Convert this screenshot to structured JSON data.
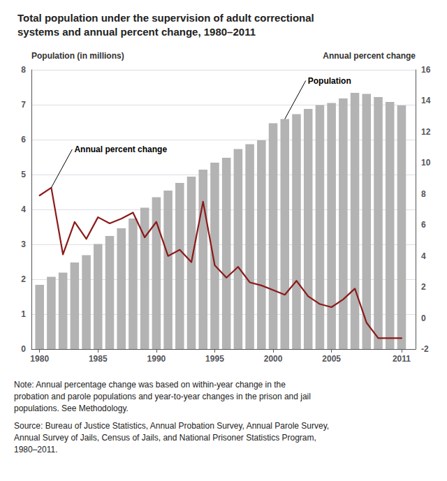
{
  "chart_data": {
    "type": "bar",
    "title": "Total population under the supervision of adult correctional\nsystems and annual percent change, 1980–2011",
    "ylabel": "Population (in millions)",
    "y2label": "Annual percent change",
    "x": [
      1980,
      1981,
      1982,
      1983,
      1984,
      1985,
      1986,
      1987,
      1988,
      1989,
      1990,
      1991,
      1992,
      1993,
      1994,
      1995,
      1996,
      1997,
      1998,
      1999,
      2000,
      2001,
      2002,
      2003,
      2004,
      2005,
      2006,
      2007,
      2008,
      2009,
      2010,
      2011
    ],
    "series": [
      {
        "type": "bar",
        "color": "#b3b3b3",
        "values": [
          1.84,
          2.07,
          2.19,
          2.48,
          2.69,
          3.01,
          3.24,
          3.46,
          3.74,
          4.05,
          4.35,
          4.54,
          4.76,
          4.94,
          5.14,
          5.34,
          5.48,
          5.73,
          5.87,
          5.98,
          6.47,
          6.59,
          6.73,
          6.88,
          6.99,
          7.05,
          7.18,
          7.34,
          7.31,
          7.22,
          7.08,
          6.98
        ]
      },
      {
        "type": "line",
        "color": "#8b1a1a",
        "axis": "y2",
        "values": [
          7.9,
          8.4,
          4.1,
          6.2,
          5.1,
          6.5,
          6.1,
          6.4,
          6.8,
          5.2,
          6.2,
          4.0,
          4.4,
          3.6,
          7.5,
          3.4,
          2.6,
          3.3,
          2.3,
          2.1,
          1.8,
          1.5,
          2.4,
          1.4,
          0.9,
          0.7,
          1.2,
          1.9,
          -0.3,
          -1.3,
          -1.3,
          -1.3
        ]
      }
    ],
    "xlim": [
      1979.3,
      2012.2
    ],
    "xticks": [
      1980,
      1985,
      1990,
      1995,
      2000,
      2005,
      2011
    ],
    "ylim": [
      0,
      8
    ],
    "yticks": [
      0,
      1,
      2,
      3,
      4,
      5,
      6,
      7,
      8
    ],
    "y2lim": [
      -2,
      16
    ],
    "y2ticks": [
      -2,
      0,
      2,
      4,
      6,
      8,
      10,
      12,
      14,
      16
    ],
    "grid": true,
    "annotations": [
      {
        "text": "Population",
        "x": 2001,
        "y": 6.59
      },
      {
        "text": "Annual percent change",
        "x": 1981,
        "y": 8.4,
        "axis": "y2"
      }
    ],
    "notes": [
      "Note: Annual percentage change was based on within-year change in the",
      "probation and parole populations and year-to-year changes in the prison and jail",
      "populations. See Methodology."
    ],
    "source": [
      "Source: Bureau of Justice Statistics, Annual Probation Survey, Annual Parole Survey,",
      "Annual Survey of Jails, Census of Jails, and National Prisoner Statistics Program,",
      "1980–2011."
    ]
  }
}
